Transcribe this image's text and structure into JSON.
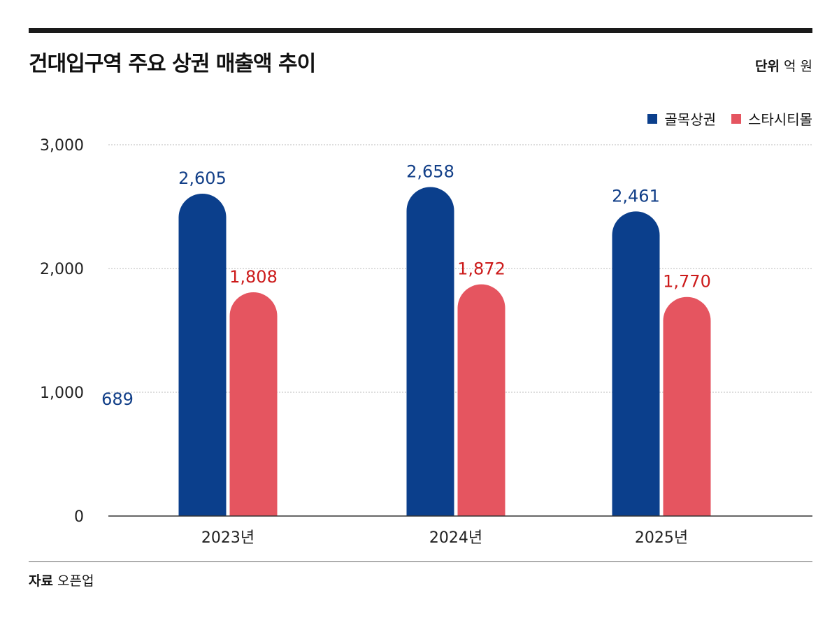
{
  "header": {
    "title": "건대입구역 주요 상권 매출액 추이",
    "unit_label": "단위",
    "unit_value": "억 원"
  },
  "footer": {
    "source_label": "자료",
    "source_value": "오픈업"
  },
  "stray_label": "689",
  "colors": {
    "series1": "#0b3f8c",
    "series2": "#e55560",
    "series1_label": "#123f88",
    "series2_label": "#cc1a1a",
    "grid": "#bbbbbb",
    "axis": "#333333"
  },
  "chart_data": {
    "type": "bar",
    "categories": [
      "2023년",
      "2024년",
      "2025년"
    ],
    "series": [
      {
        "name": "골목상권",
        "values": [
          2605,
          2658,
          2461
        ]
      },
      {
        "name": "스타시티몰",
        "values": [
          1808,
          1872,
          1770
        ]
      }
    ],
    "data_labels": [
      [
        "2,605",
        "2,658",
        "2,461"
      ],
      [
        "1,808",
        "1,872",
        "1,770"
      ]
    ],
    "yticks": [
      0,
      1000,
      2000,
      3000
    ],
    "ytick_labels": [
      "0",
      "1,000",
      "2,000",
      "3,000"
    ],
    "ylim": [
      0,
      3000
    ],
    "grid": true,
    "legend": "top-right"
  }
}
